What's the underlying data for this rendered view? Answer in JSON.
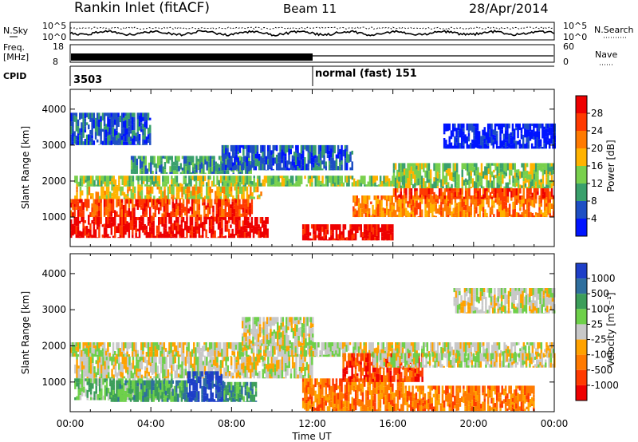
{
  "header": {
    "site": "Rankin Inlet (fitACF)",
    "beam": "Beam 11",
    "date": "28/Apr/2014"
  },
  "status_panels": {
    "nsky_label": "N.Sky",
    "nsearch_label": "N.Search",
    "freq_label_top": "Freq.",
    "freq_label_unit": "[MHz]",
    "nave_label": "Nave",
    "cpid_label": "CPID",
    "noise_left_ticks": [
      "10^5",
      "10^0"
    ],
    "noise_right_ticks": [
      "10^5",
      "10^0"
    ],
    "freq_left_ticks": [
      "18",
      "8"
    ],
    "freq_right_ticks": [
      "60",
      "0"
    ],
    "cpid_value": "3503",
    "cpid_mode": "normal (fast) 151"
  },
  "chart_data": [
    {
      "type": "heatmap",
      "name": "power",
      "ylabel": "Slant Range [km]",
      "xlabel": "",
      "ylim": [
        180,
        4550
      ],
      "yticks": [
        "1000",
        "2000",
        "3000",
        "4000"
      ],
      "colorbar": {
        "label": "Power [dB]",
        "ticks": [
          "4",
          "8",
          "12",
          "16",
          "20",
          "24",
          "28"
        ],
        "colors": [
          "#0014ff",
          "#1e4fc4",
          "#3aa06c",
          "#79d04d",
          "#ffb300",
          "#ff7a00",
          "#ff3a00",
          "#ee0000"
        ]
      },
      "bands": [
        {
          "start": 0.0,
          "end": 9.8,
          "range": [
            420,
            1000
          ],
          "level": 7
        },
        {
          "start": 0.0,
          "end": 9.0,
          "range": [
            1000,
            1500
          ],
          "level": 6
        },
        {
          "start": 0.2,
          "end": 9.5,
          "range": [
            1500,
            1850
          ],
          "level": 4
        },
        {
          "start": 0.2,
          "end": 16.5,
          "range": [
            1850,
            2150
          ],
          "level": 3
        },
        {
          "start": 3.0,
          "end": 9.0,
          "range": [
            2200,
            2700
          ],
          "level": 2
        },
        {
          "start": 7.5,
          "end": 14.0,
          "range": [
            2300,
            3000
          ],
          "level": 1
        },
        {
          "start": 11.5,
          "end": 16.0,
          "range": [
            350,
            800
          ],
          "level": 7
        },
        {
          "start": 14.0,
          "end": 24.0,
          "range": [
            1000,
            1600
          ],
          "level": 5
        },
        {
          "start": 16.0,
          "end": 24.0,
          "range": [
            1500,
            1800
          ],
          "level": 6
        },
        {
          "start": 16.0,
          "end": 24.0,
          "range": [
            1800,
            2500
          ],
          "level": 3
        },
        {
          "start": 18.5,
          "end": 24.0,
          "range": [
            2900,
            3600
          ],
          "level": 0
        },
        {
          "start": 0.0,
          "end": 4.0,
          "range": [
            3000,
            3900
          ],
          "level": 1
        }
      ]
    },
    {
      "type": "heatmap",
      "name": "velocity",
      "ylabel": "Slant Range [km]",
      "xlabel": "Time UT",
      "ylim": [
        180,
        4550
      ],
      "yticks": [
        "1000",
        "2000",
        "3000",
        "4000"
      ],
      "xticks": [
        "00:00",
        "04:00",
        "08:00",
        "12:00",
        "16:00",
        "20:00",
        "00:00"
      ],
      "colorbar": {
        "label": "Velocity [m s⁻¹]",
        "ticks": [
          "1000",
          "500",
          "100",
          "25",
          "-25",
          "-100",
          "-500",
          "-1000"
        ],
        "colors": [
          "#1e3fc8",
          "#2f6f9e",
          "#3c9e5a",
          "#6ed04a",
          "#c8c8c8",
          "#ffa200",
          "#ff7a00",
          "#ff3a00",
          "#ee0000"
        ]
      },
      "bands": [
        {
          "start": 0.0,
          "end": 24.0,
          "range": [
            1700,
            2100
          ],
          "level": 4
        },
        {
          "start": 0.2,
          "end": 12.0,
          "range": [
            1100,
            1700
          ],
          "level": 4
        },
        {
          "start": 0.2,
          "end": 5.0,
          "range": [
            500,
            1100
          ],
          "level": 3
        },
        {
          "start": 2.0,
          "end": 5.8,
          "range": [
            450,
            1050
          ],
          "level": 2
        },
        {
          "start": 5.8,
          "end": 7.6,
          "range": [
            450,
            1300
          ],
          "level": 0
        },
        {
          "start": 7.6,
          "end": 9.2,
          "range": [
            450,
            1000
          ],
          "level": 2
        },
        {
          "start": 8.5,
          "end": 12.0,
          "range": [
            2000,
            2800
          ],
          "level": 4
        },
        {
          "start": 11.5,
          "end": 16.5,
          "range": [
            200,
            1100
          ],
          "level": 6
        },
        {
          "start": 13.5,
          "end": 17.5,
          "range": [
            1000,
            1800
          ],
          "level": 7
        },
        {
          "start": 16.5,
          "end": 23.0,
          "range": [
            200,
            900
          ],
          "level": 6
        },
        {
          "start": 15.0,
          "end": 24.0,
          "range": [
            1400,
            1800
          ],
          "level": 4
        },
        {
          "start": 19.0,
          "end": 24.0,
          "range": [
            2900,
            3600
          ],
          "level": 4
        }
      ]
    }
  ]
}
